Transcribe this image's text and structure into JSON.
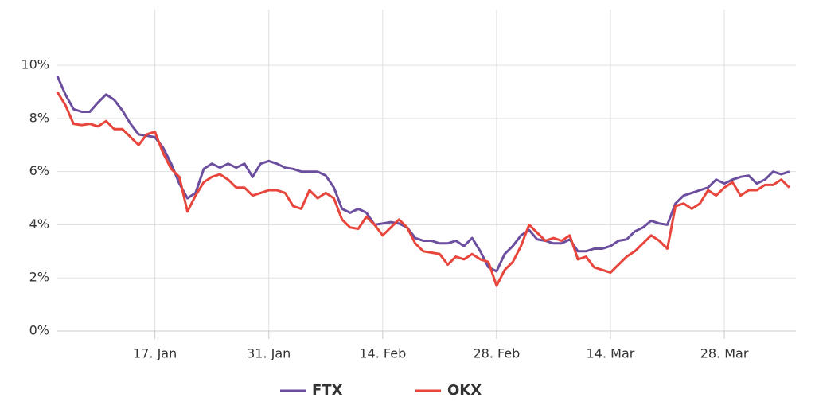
{
  "chart_data": {
    "type": "line",
    "x": [
      5,
      6,
      7,
      8,
      9,
      10,
      11,
      12,
      13,
      14,
      15,
      16,
      17,
      18,
      19,
      20,
      21,
      22,
      23,
      24,
      25,
      26,
      27,
      28,
      29,
      30,
      31,
      32,
      33,
      34,
      35,
      36,
      37,
      38,
      39,
      40,
      41,
      42,
      43,
      44,
      45,
      46,
      47,
      48,
      49,
      50,
      51,
      52,
      53,
      54,
      55,
      56,
      57,
      58,
      59,
      60,
      61,
      62,
      63,
      64,
      65,
      66,
      67,
      68,
      69,
      70,
      71,
      72,
      73,
      74,
      75,
      76,
      77,
      78,
      79,
      80,
      81,
      82,
      83,
      84,
      85,
      86,
      87,
      88,
      89,
      90,
      91,
      92,
      93,
      94,
      95
    ],
    "series": [
      {
        "name": "FTX",
        "color": "#6b4e9e",
        "values": [
          9.6,
          8.9,
          8.35,
          8.25,
          8.25,
          8.6,
          8.9,
          8.7,
          8.3,
          7.8,
          7.4,
          7.35,
          7.3,
          6.9,
          6.3,
          5.55,
          5.0,
          5.2,
          6.1,
          6.3,
          6.15,
          6.3,
          6.15,
          6.3,
          5.8,
          6.3,
          6.4,
          6.3,
          6.15,
          6.1,
          6.0,
          6.0,
          6.0,
          5.85,
          5.4,
          4.6,
          4.45,
          4.6,
          4.45,
          4.0,
          4.05,
          4.1,
          4.05,
          3.9,
          3.5,
          3.4,
          3.4,
          3.3,
          3.3,
          3.4,
          3.2,
          3.5,
          3.0,
          2.4,
          2.25,
          2.9,
          3.2,
          3.6,
          3.8,
          3.45,
          3.4,
          3.3,
          3.3,
          3.45,
          3.0,
          3.0,
          3.1,
          3.1,
          3.2,
          3.4,
          3.45,
          3.75,
          3.9,
          4.15,
          4.05,
          4.0,
          4.8,
          5.1,
          5.2,
          5.3,
          5.4,
          5.7,
          5.55,
          5.7,
          5.8,
          5.85,
          5.55,
          5.7,
          6.0,
          5.9,
          6.0
        ]
      },
      {
        "name": "OKX",
        "color": "#e8453c",
        "values": [
          9.0,
          8.5,
          7.8,
          7.75,
          7.8,
          7.7,
          7.9,
          7.6,
          7.6,
          7.3,
          7.0,
          7.4,
          7.5,
          6.7,
          6.1,
          5.8,
          4.5,
          5.1,
          5.6,
          5.8,
          5.9,
          5.7,
          5.4,
          5.4,
          5.1,
          5.2,
          5.3,
          5.3,
          5.2,
          4.7,
          4.6,
          5.3,
          5.0,
          5.2,
          5.0,
          4.2,
          3.9,
          3.85,
          4.3,
          4.0,
          3.6,
          3.9,
          4.2,
          3.9,
          3.3,
          3.0,
          2.95,
          2.9,
          2.5,
          2.8,
          2.7,
          2.9,
          2.7,
          2.6,
          1.7,
          2.3,
          2.6,
          3.2,
          4.0,
          3.7,
          3.4,
          3.5,
          3.4,
          3.6,
          2.7,
          2.8,
          2.4,
          2.3,
          2.2,
          2.5,
          2.8,
          3.0,
          3.3,
          3.6,
          3.4,
          3.1,
          4.7,
          4.8,
          4.6,
          4.8,
          5.3,
          5.1,
          5.4,
          5.6,
          5.1,
          5.3,
          5.3,
          5.5,
          5.5,
          5.7,
          5.4
        ]
      }
    ],
    "xlim": [
      5,
      95.8
    ],
    "xticks": [
      {
        "value": 17,
        "label": "17. Jan"
      },
      {
        "value": 31,
        "label": "31. Jan"
      },
      {
        "value": 45,
        "label": "14. Feb"
      },
      {
        "value": 59,
        "label": "28. Feb"
      },
      {
        "value": 73,
        "label": "14. Mar"
      },
      {
        "value": 87,
        "label": "28. Mar"
      }
    ],
    "ylim": [
      0,
      12.1
    ],
    "yticks": [
      {
        "value": 0,
        "label": "0%"
      },
      {
        "value": 2,
        "label": "2%"
      },
      {
        "value": 4,
        "label": "4%"
      },
      {
        "value": 6,
        "label": "6%"
      },
      {
        "value": 8,
        "label": "8%"
      },
      {
        "value": 10,
        "label": "10%"
      }
    ],
    "grid": true,
    "legend": "bottom"
  }
}
